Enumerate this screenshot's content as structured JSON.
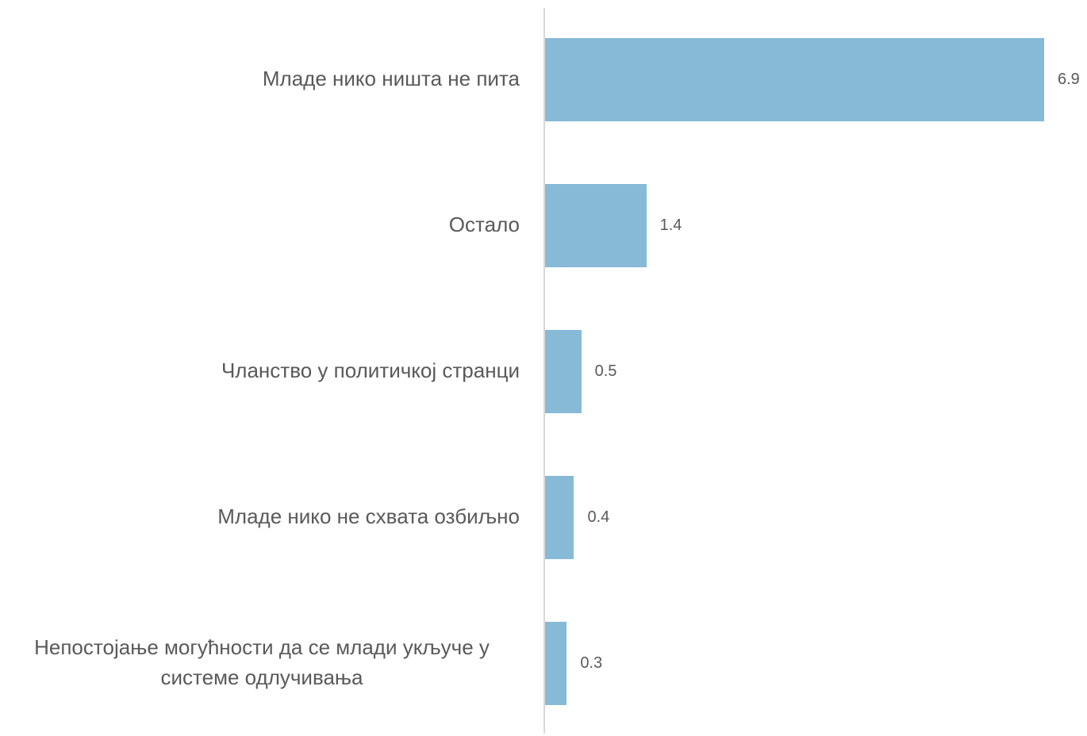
{
  "chart_data": {
    "type": "bar",
    "orientation": "horizontal",
    "categories": [
      "Младе нико ништа не пита",
      "Остало",
      "Чланство у политичкој странци",
      "Младе нико не схвата озбиљно",
      "Непостојање могућности да се млади укључе у системе одлучивања"
    ],
    "values": [
      6.9,
      1.4,
      0.5,
      0.4,
      0.3
    ],
    "color": "#87bad7"
  }
}
